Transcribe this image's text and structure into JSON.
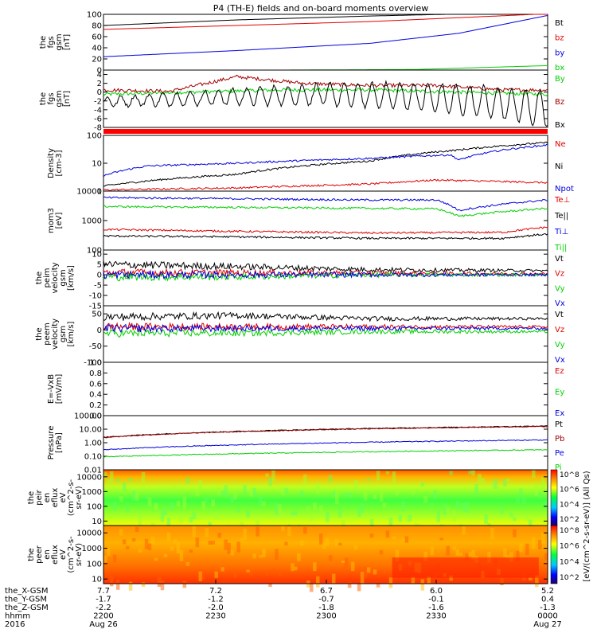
{
  "title": "P4 (TH-E) fields and on-board moments overview",
  "colors": {
    "black": "#000000",
    "red": "#e00000",
    "darkred": "#a00000",
    "green": "#00d000",
    "blue": "#0000e0"
  },
  "chart_data": [
    {
      "type": "line",
      "ylabel": [
        "the",
        "fgs",
        "gsm",
        "[nT]"
      ],
      "ylim": [
        0,
        100
      ],
      "yticks": [
        "0",
        "20",
        "40",
        "60",
        "80",
        "100"
      ],
      "series": [
        {
          "name": "Bt",
          "color": "#000000",
          "x": [
            0,
            0.3,
            0.6,
            1
          ],
          "y": [
            80,
            90,
            97,
            104
          ]
        },
        {
          "name": "bz",
          "color": "#e00000",
          "x": [
            0,
            0.3,
            0.6,
            1
          ],
          "y": [
            73,
            80,
            87,
            101
          ]
        },
        {
          "name": "by",
          "color": "#0000e0",
          "x": [
            0,
            0.3,
            0.6,
            0.8,
            1
          ],
          "y": [
            24,
            35,
            48,
            66,
            98
          ]
        },
        {
          "name": "bx",
          "color": "#00d000",
          "x": [
            0,
            0.4,
            0.7,
            1
          ],
          "y": [
            -1,
            0,
            1,
            8
          ]
        }
      ]
    },
    {
      "type": "line",
      "ylabel": [
        "the",
        "fgs",
        "gsm",
        "[nT]"
      ],
      "ylim": [
        -8,
        5
      ],
      "yticks": [
        "-8",
        "-6",
        "-4",
        "-2",
        "0",
        "2",
        "4"
      ],
      "series": [
        {
          "name": "By",
          "color": "#00d000",
          "x": [
            0,
            0.2,
            0.4,
            0.6,
            0.8,
            1
          ],
          "y": [
            -0.5,
            0,
            0.5,
            0.5,
            0,
            -0.5
          ]
        },
        {
          "name": "Bz",
          "color": "#a00000",
          "x": [
            0,
            0.15,
            0.3,
            0.45,
            0.6,
            0.75,
            0.9,
            1
          ],
          "y": [
            0.5,
            0.2,
            3.5,
            2,
            1.5,
            1.5,
            0.5,
            0.5
          ]
        },
        {
          "name": "Bx",
          "color": "#000000",
          "x": [
            0,
            0.3,
            0.5,
            0.7,
            0.9,
            1
          ],
          "y": [
            -2.2,
            -1,
            -0.5,
            -1,
            -2.5,
            -4
          ]
        }
      ]
    },
    {
      "type": "line",
      "ylabel": [
        "Density",
        "[cm-3]"
      ],
      "ylim": [
        1,
        100
      ],
      "yticks": [
        "1",
        "10",
        "100"
      ],
      "scale": "log",
      "series": [
        {
          "name": "Ne",
          "color": "#e00000",
          "x": [
            0,
            0.3,
            0.6,
            0.75,
            1
          ],
          "y": [
            1.1,
            1.3,
            1.8,
            2.5,
            2.0
          ]
        },
        {
          "name": "Ni",
          "color": "#000000",
          "x": [
            0,
            0.3,
            0.6,
            0.8,
            1
          ],
          "y": [
            1.5,
            4,
            12,
            30,
            55
          ]
        },
        {
          "name": "Npot",
          "color": "#0000e0",
          "x": [
            0,
            0.1,
            0.3,
            0.6,
            0.78,
            0.8,
            0.9,
            1
          ],
          "y": [
            3.5,
            8,
            10,
            15,
            20,
            13,
            30,
            45
          ]
        }
      ]
    },
    {
      "type": "line",
      "ylabel": [
        "mom3",
        "[eV]"
      ],
      "ylim": [
        100,
        10000
      ],
      "yticks": [
        "100",
        "1000",
        "10000"
      ],
      "scale": "log",
      "series": [
        {
          "name": "Te⊥",
          "color": "#e00000",
          "x": [
            0,
            0.3,
            0.6,
            0.9,
            1
          ],
          "y": [
            500,
            430,
            380,
            400,
            600
          ]
        },
        {
          "name": "Te||",
          "color": "#000000",
          "x": [
            0,
            0.3,
            0.6,
            0.9,
            1
          ],
          "y": [
            300,
            280,
            250,
            250,
            350
          ]
        },
        {
          "name": "Ti⊥",
          "color": "#0000e0",
          "x": [
            0,
            0.3,
            0.6,
            0.75,
            0.8,
            1
          ],
          "y": [
            6000,
            5500,
            5000,
            5000,
            2200,
            5000
          ]
        },
        {
          "name": "Ti||",
          "color": "#00d000",
          "x": [
            0,
            0.3,
            0.6,
            0.75,
            0.8,
            1
          ],
          "y": [
            3000,
            2800,
            2600,
            2500,
            1400,
            2600
          ]
        }
      ]
    },
    {
      "type": "line",
      "ylabel": [
        "the",
        "peim",
        "velocity",
        "gsm",
        "[km/s]"
      ],
      "ylim": [
        -15,
        12
      ],
      "yticks": [
        "-15",
        "-10",
        "-5",
        "0",
        "5",
        "10"
      ],
      "series": [
        {
          "name": "Vt",
          "color": "#000000",
          "x": [
            0,
            0.3,
            0.6,
            1
          ],
          "y": [
            5,
            4,
            2.5,
            2
          ]
        },
        {
          "name": "Vz",
          "color": "#e00000",
          "x": [
            0,
            0.3,
            0.6,
            1
          ],
          "y": [
            1,
            1,
            0.8,
            0.5
          ]
        },
        {
          "name": "Vy",
          "color": "#00d000",
          "x": [
            0,
            0.3,
            0.6,
            1
          ],
          "y": [
            -1,
            -1,
            0,
            0
          ]
        },
        {
          "name": "Vx",
          "color": "#0000e0",
          "x": [
            0,
            0.3,
            0.6,
            1
          ],
          "y": [
            0,
            0,
            0,
            0
          ]
        }
      ]
    },
    {
      "type": "line",
      "ylabel": [
        "the",
        "peem",
        "velocity",
        "gsm",
        "[km/s]"
      ],
      "ylim": [
        -100,
        75
      ],
      "yticks": [
        "-100",
        "-50",
        "0",
        "50"
      ],
      "series": [
        {
          "name": "Vt",
          "color": "#000000",
          "x": [
            0,
            0.3,
            0.6,
            1
          ],
          "y": [
            40,
            45,
            35,
            35
          ]
        },
        {
          "name": "Vz",
          "color": "#e00000",
          "x": [
            0,
            0.3,
            0.6,
            1
          ],
          "y": [
            10,
            10,
            10,
            10
          ]
        },
        {
          "name": "Vy",
          "color": "#00d000",
          "x": [
            0,
            0.3,
            0.6,
            1
          ],
          "y": [
            -10,
            -10,
            -5,
            -5
          ]
        },
        {
          "name": "Vx",
          "color": "#0000e0",
          "x": [
            0,
            0.3,
            0.6,
            1
          ],
          "y": [
            5,
            5,
            5,
            5
          ]
        }
      ]
    },
    {
      "type": "line",
      "ylabel": [
        "E=-VxB",
        "[mV/m]"
      ],
      "ylim": [
        0,
        1
      ],
      "yticks": [
        "0.0",
        "0.2",
        "0.4",
        "0.6",
        "0.8",
        "1.0"
      ],
      "series": [
        {
          "name": "Ez",
          "color": "#e00000",
          "x": [],
          "y": []
        },
        {
          "name": "Ey",
          "color": "#00d000",
          "x": [],
          "y": []
        },
        {
          "name": "Ex",
          "color": "#0000e0",
          "x": [],
          "y": []
        }
      ]
    },
    {
      "type": "line",
      "ylabel": [
        "Pressure",
        "[nPa]"
      ],
      "ylim": [
        0.01,
        100
      ],
      "yticks": [
        "0.01",
        "0.10",
        "1.00",
        "10.00",
        "100.00"
      ],
      "scale": "log",
      "series": [
        {
          "name": "Pt",
          "color": "#000000",
          "x": [
            0,
            1
          ],
          "y": [
            2.5,
            17
          ]
        },
        {
          "name": "Pb",
          "color": "#a00000",
          "x": [
            0,
            1
          ],
          "y": [
            2.4,
            16
          ]
        },
        {
          "name": "Pe",
          "color": "#0000e0",
          "x": [
            0,
            1
          ],
          "y": [
            0.3,
            1.6
          ]
        },
        {
          "name": "Pi",
          "color": "#00d000",
          "x": [
            0,
            1
          ],
          "y": [
            0.09,
            0.3
          ]
        }
      ]
    },
    {
      "type": "heatmap",
      "ylabel": [
        "the",
        "peir",
        "en",
        "eflux",
        "eV",
        "(cm^2-s-",
        "sr-eV)"
      ],
      "yticks": [
        "10",
        "100",
        "1000",
        "10000"
      ],
      "ylim": [
        5,
        30000
      ],
      "scale": "log"
    },
    {
      "type": "heatmap",
      "ylabel": [
        "the",
        "peer",
        "en",
        "eflux",
        "eV",
        "(cm^2-s-",
        "sr-eV)"
      ],
      "yticks": [
        "10",
        "100",
        "1000",
        "10000"
      ],
      "ylim": [
        5,
        30000
      ],
      "scale": "log"
    }
  ],
  "colorbar": {
    "ticks": [
      "10^2",
      "10^4",
      "10^6",
      "10^8"
    ],
    "label": "[eV/(cm^2-s-sr-eV)] (All Qs)"
  },
  "footer": {
    "rows": [
      {
        "label": "the_X-GSM",
        "values": [
          "7.7",
          "7.2",
          "6.7",
          "6.0",
          "5.2"
        ]
      },
      {
        "label": "the_Y-GSM",
        "values": [
          "-1.7",
          "-1.2",
          "-0.7",
          "-0.1",
          "0.4"
        ]
      },
      {
        "label": "the_Z-GSM",
        "values": [
          "-2.2",
          "-2.0",
          "-1.8",
          "-1.6",
          "-1.3"
        ]
      },
      {
        "label": "hhmm",
        "values": [
          "2200",
          "2230",
          "2300",
          "2330",
          "0000"
        ]
      },
      {
        "label": "2016",
        "values": [
          "Aug 26",
          "",
          "",
          "",
          "Aug 27"
        ]
      }
    ]
  }
}
